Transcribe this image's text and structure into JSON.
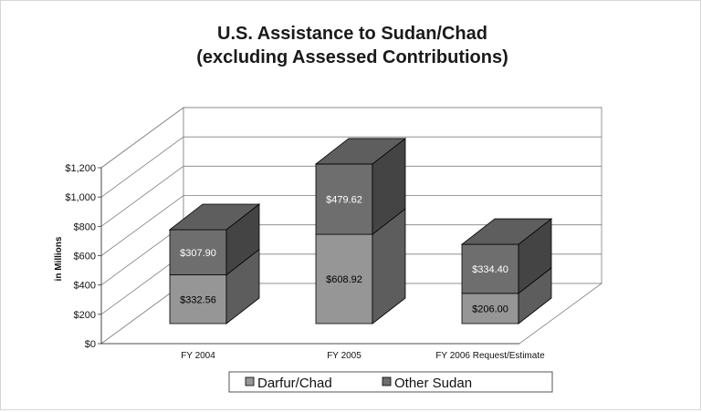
{
  "chart_data": {
    "type": "bar",
    "stacked": true,
    "three_d": true,
    "title": [
      "U.S. Assistance to Sudan/Chad",
      "(excluding Assessed Contributions)"
    ],
    "ylabel": "in Millions",
    "xlabel": "",
    "categories": [
      "FY 2004",
      "FY 2005",
      "FY 2006 Request/Estimate"
    ],
    "ylim": [
      0,
      1200
    ],
    "yticks": [
      0,
      200,
      400,
      600,
      800,
      1000,
      1200
    ],
    "ytick_labels": [
      "$0",
      "$200",
      "$400",
      "$600",
      "$800",
      "$1,000",
      "$1,200"
    ],
    "grid": true,
    "legend": "bottom",
    "series": [
      {
        "name": "Darfur/Chad",
        "values": [
          332.56,
          608.92,
          206.0
        ],
        "labels": [
          "$332.56",
          "$608.92",
          "$206.00"
        ],
        "color": "#969696"
      },
      {
        "name": "Other Sudan",
        "values": [
          307.9,
          479.62,
          334.4
        ],
        "labels": [
          "$307.90",
          "$479.62",
          "$334.40"
        ],
        "color": "#6e6e6e"
      }
    ]
  }
}
